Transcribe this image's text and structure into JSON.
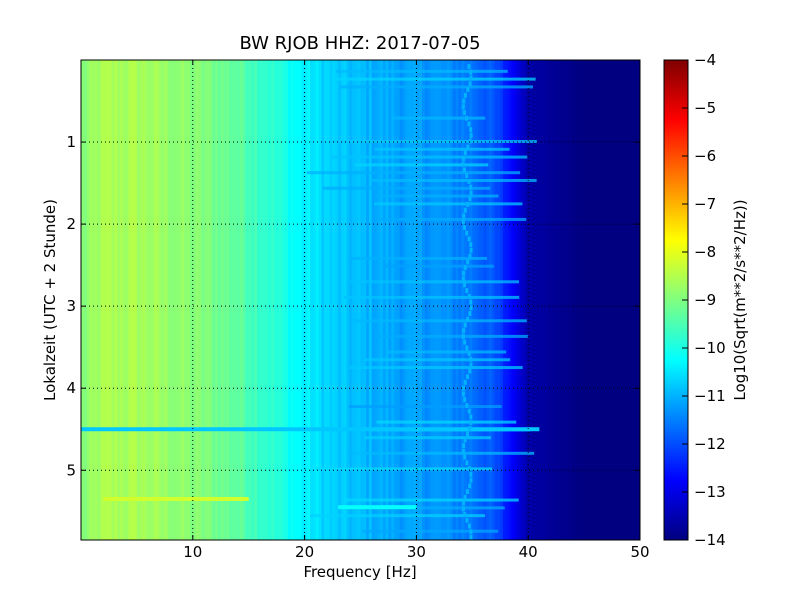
{
  "chart_data": {
    "type": "heatmap",
    "title": "BW RJOB HHZ: 2017-07-05",
    "xlabel": "Frequency [Hz]",
    "ylabel": "Lokalzeit (UTC + 2 Stunde)",
    "xlim": [
      0,
      50
    ],
    "ylim": [
      5.85,
      0
    ],
    "x_ticks": [
      10,
      20,
      30,
      40,
      50
    ],
    "y_ticks": [
      1,
      2,
      3,
      4,
      5
    ],
    "grid": true,
    "colormap": "jet",
    "colorbar": {
      "label": "Log10(Sqrt(m**2/s**2/Hz))",
      "range": [
        -14,
        -4
      ],
      "ticks": [
        -4,
        -5,
        -6,
        -7,
        -8,
        -9,
        -10,
        -11,
        -12,
        -13,
        -14
      ]
    },
    "spectral_profile": {
      "x": [
        0,
        2,
        5,
        8,
        11,
        14,
        17,
        20,
        23,
        26,
        29,
        32,
        35,
        37,
        38.5,
        40,
        45,
        50
      ],
      "y": [
        -9.0,
        -8.6,
        -8.6,
        -8.8,
        -9.0,
        -9.3,
        -9.8,
        -10.4,
        -10.8,
        -11.0,
        -11.2,
        -11.3,
        -11.6,
        -12.0,
        -12.7,
        -13.6,
        -14.0,
        -14.0
      ]
    },
    "tonal_line": {
      "x": 34.5,
      "y": -11.0
    },
    "bright_events": [
      {
        "time": 4.5,
        "x_range": [
          0,
          41
        ],
        "y": -10.8
      },
      {
        "time": 5.45,
        "x_range": [
          23,
          30
        ],
        "y": -10.2
      },
      {
        "time": 5.35,
        "x_range": [
          2,
          15
        ],
        "y": -8.2
      }
    ]
  }
}
